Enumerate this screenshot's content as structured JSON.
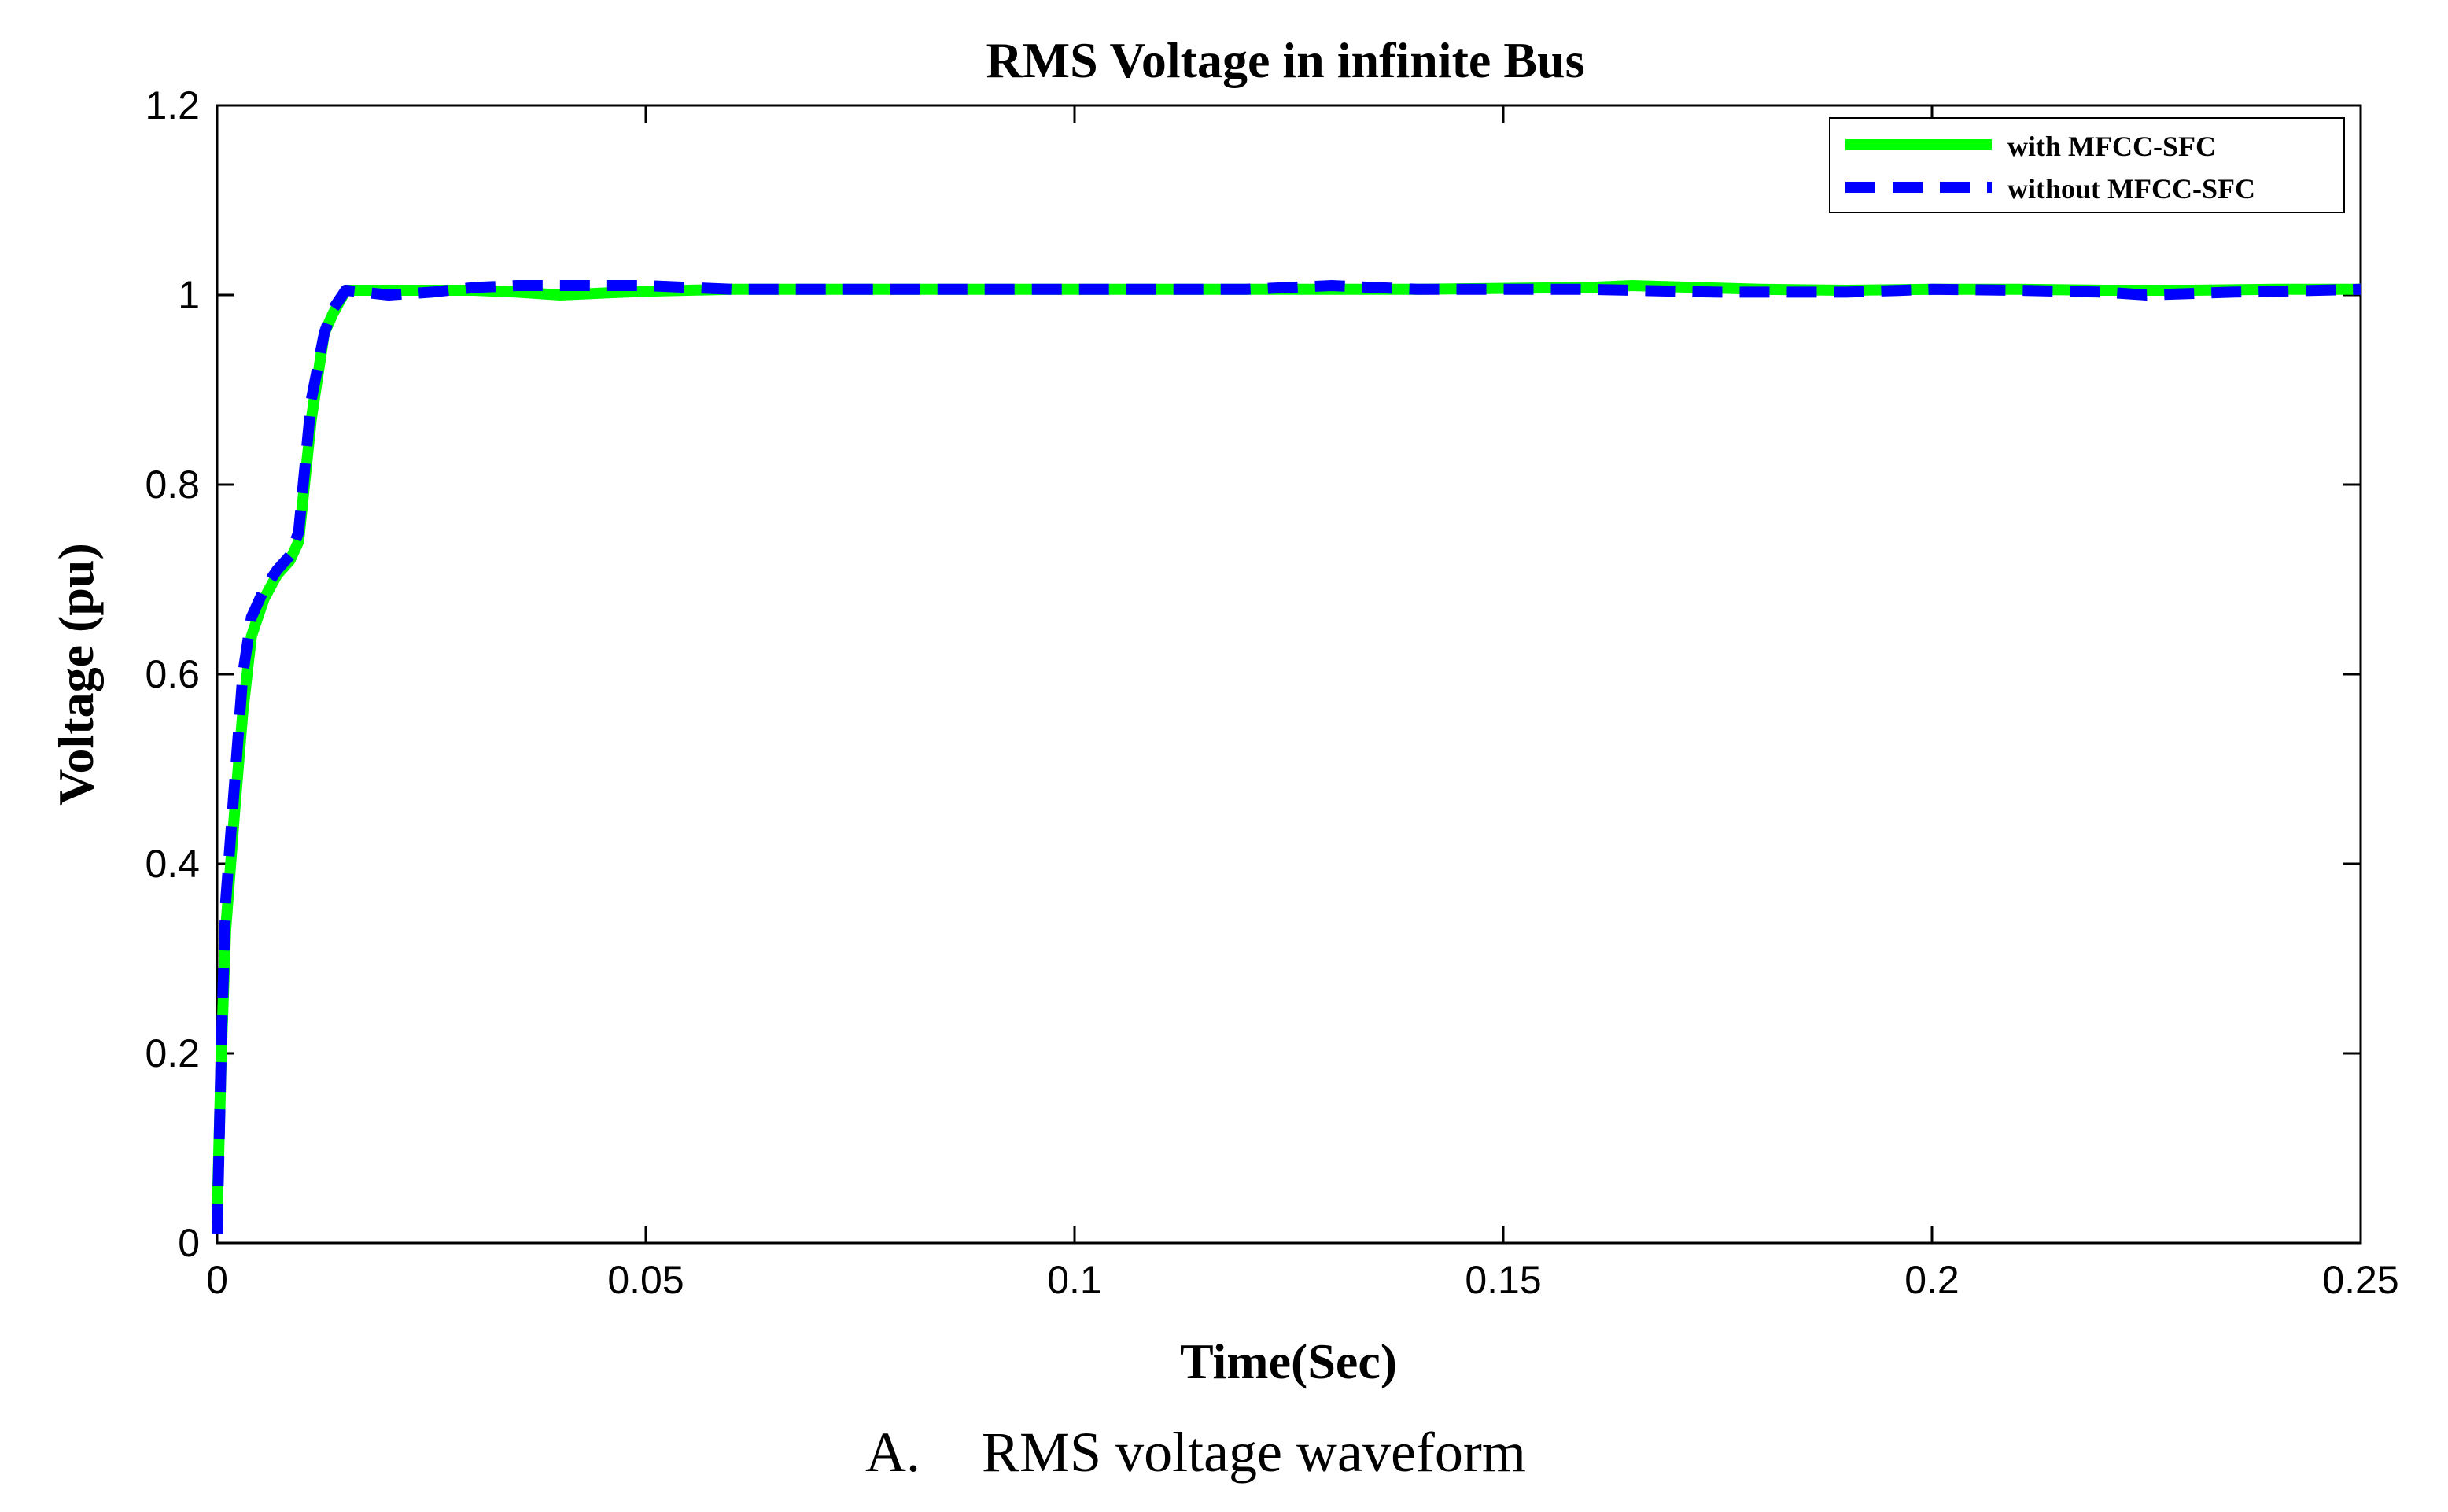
{
  "chart_data": {
    "type": "line",
    "title": "RMS Voltage in infinite Bus",
    "xlabel": "Time(Sec)",
    "ylabel": "Voltage (pu)",
    "xlim": [
      0,
      0.25
    ],
    "ylim": [
      0,
      1.2
    ],
    "xticks": [
      0,
      0.05,
      0.1,
      0.15,
      0.2,
      0.25
    ],
    "xtick_labels": [
      "0",
      "0.05",
      "0.1",
      "0.15",
      "0.2",
      "0.25"
    ],
    "yticks": [
      0,
      0.2,
      0.4,
      0.6,
      0.8,
      1.0,
      1.2
    ],
    "ytick_labels": [
      "0",
      "0.2",
      "0.4",
      "0.6",
      "0.8",
      "1",
      "1.2"
    ],
    "grid": false,
    "legend_position": "top-right",
    "series": [
      {
        "name": "with MFCC-SFC",
        "color": "#00ff00",
        "style": "solid",
        "x": [
          0,
          0.0005,
          0.001,
          0.002,
          0.003,
          0.004,
          0.0055,
          0.007,
          0.0085,
          0.0095,
          0.011,
          0.0125,
          0.0135,
          0.015,
          0.02,
          0.03,
          0.035,
          0.04,
          0.05,
          0.06,
          0.08,
          0.1,
          0.12,
          0.14,
          0.16,
          0.165,
          0.18,
          0.19,
          0.2,
          0.21,
          0.22,
          0.23,
          0.24,
          0.25
        ],
        "y": [
          0.03,
          0.2,
          0.33,
          0.45,
          0.56,
          0.64,
          0.68,
          0.705,
          0.72,
          0.74,
          0.87,
          0.96,
          0.98,
          1.005,
          1.005,
          1.005,
          1.003,
          1.0,
          1.004,
          1.006,
          1.006,
          1.006,
          1.006,
          1.006,
          1.008,
          1.01,
          1.006,
          1.005,
          1.006,
          1.006,
          1.005,
          1.005,
          1.006,
          1.006
        ]
      },
      {
        "name": "without MFCC-SFC",
        "color": "#0000ff",
        "style": "dashed",
        "x": [
          0,
          0.0005,
          0.001,
          0.002,
          0.003,
          0.004,
          0.0055,
          0.007,
          0.0085,
          0.0095,
          0.011,
          0.0125,
          0.0135,
          0.015,
          0.02,
          0.025,
          0.03,
          0.035,
          0.04,
          0.05,
          0.06,
          0.08,
          0.1,
          0.12,
          0.13,
          0.14,
          0.16,
          0.175,
          0.18,
          0.19,
          0.2,
          0.21,
          0.22,
          0.225,
          0.235,
          0.25
        ],
        "y": [
          0.01,
          0.21,
          0.36,
          0.48,
          0.6,
          0.66,
          0.69,
          0.71,
          0.725,
          0.75,
          0.89,
          0.96,
          0.985,
          1.005,
          1.0,
          1.003,
          1.008,
          1.01,
          1.01,
          1.01,
          1.006,
          1.006,
          1.006,
          1.006,
          1.01,
          1.006,
          1.006,
          1.003,
          1.003,
          1.003,
          1.006,
          1.005,
          1.003,
          1.0,
          1.003,
          1.006
        ]
      }
    ]
  },
  "caption": {
    "label": "A.",
    "text": "RMS voltage waveform"
  }
}
